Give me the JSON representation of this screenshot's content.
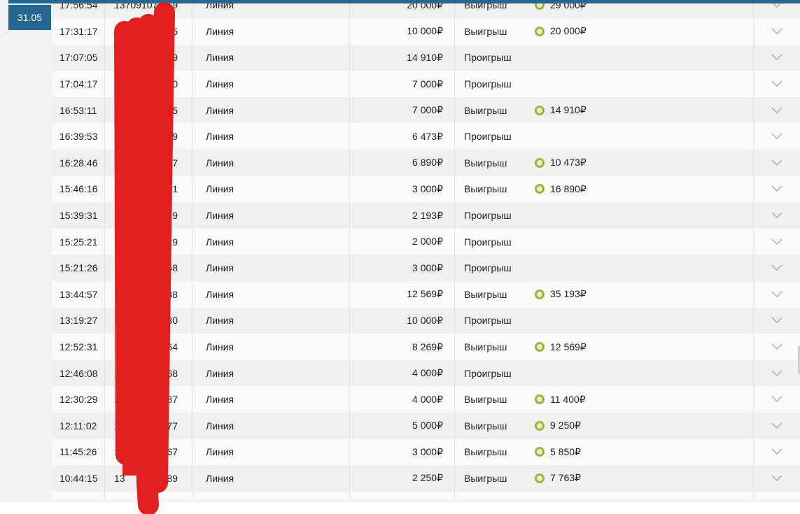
{
  "date_badge": "31.05",
  "currency": "₽",
  "rows": [
    {
      "time": "17:56:54",
      "id_start": "13709107",
      "id_end": "9",
      "type": "Линия",
      "amount": "20 000₽",
      "result": "Выигрыш",
      "payout": "29 000₽"
    },
    {
      "time": "17:31:17",
      "id_start": "",
      "id_end": "5",
      "type": "Линия",
      "amount": "10 000₽",
      "result": "Выигрыш",
      "payout": "20 000₽"
    },
    {
      "time": "17:07:05",
      "id_start": "1",
      "id_end": "9",
      "type": "Линия",
      "amount": "14 910₽",
      "result": "Проигрыш",
      "payout": ""
    },
    {
      "time": "17:04:17",
      "id_start": "1",
      "id_end": "0",
      "type": "Линия",
      "amount": "7 000₽",
      "result": "Проигрыш",
      "payout": ""
    },
    {
      "time": "16:53:11",
      "id_start": "1",
      "id_end": "5",
      "type": "Линия",
      "amount": "7 000₽",
      "result": "Выигрыш",
      "payout": "14 910₽"
    },
    {
      "time": "16:39:53",
      "id_start": "1",
      "id_end": "9",
      "type": "Линия",
      "amount": "6 473₽",
      "result": "Проигрыш",
      "payout": ""
    },
    {
      "time": "16:28:46",
      "id_start": "1",
      "id_end": "7",
      "type": "Линия",
      "amount": "6 890₽",
      "result": "Выигрыш",
      "payout": "10 473₽"
    },
    {
      "time": "15:46:16",
      "id_start": "1",
      "id_end": "1",
      "type": "Линия",
      "amount": "3 000₽",
      "result": "Выигрыш",
      "payout": "16 890₽"
    },
    {
      "time": "15:39:31",
      "id_start": "1",
      "id_end": "9",
      "type": "Линия",
      "amount": "2 193₽",
      "result": "Проигрыш",
      "payout": ""
    },
    {
      "time": "15:25:21",
      "id_start": "1",
      "id_end": "9",
      "type": "Линия",
      "amount": "2 000₽",
      "result": "Проигрыш",
      "payout": ""
    },
    {
      "time": "15:21:26",
      "id_start": "1",
      "id_end": "58",
      "type": "Линия",
      "amount": "3 000₽",
      "result": "Проигрыш",
      "payout": ""
    },
    {
      "time": "13:44:57",
      "id_start": "1",
      "id_end": "38",
      "type": "Линия",
      "amount": "12 569₽",
      "result": "Выигрыш",
      "payout": "35 193₽"
    },
    {
      "time": "13:19:27",
      "id_start": "1",
      "id_end": "30",
      "type": "Линия",
      "amount": "10 000₽",
      "result": "Проигрыш",
      "payout": ""
    },
    {
      "time": "12:52:31",
      "id_start": "1",
      "id_end": "64",
      "type": "Линия",
      "amount": "8 269₽",
      "result": "Выигрыш",
      "payout": "12 569₽"
    },
    {
      "time": "12:46:08",
      "id_start": "1",
      "id_end": "68",
      "type": "Линия",
      "amount": "4 000₽",
      "result": "Проигрыш",
      "payout": ""
    },
    {
      "time": "12:30:29",
      "id_start": "1",
      "id_end": "87",
      "type": "Линия",
      "amount": "4 000₽",
      "result": "Выигрыш",
      "payout": "11 400₽"
    },
    {
      "time": "12:11:02",
      "id_start": "1",
      "id_end": "77",
      "type": "Линия",
      "amount": "5 000₽",
      "result": "Выигрыш",
      "payout": "9 250₽"
    },
    {
      "time": "11:45:26",
      "id_start": "1",
      "id_end": "67",
      "type": "Линия",
      "amount": "3 000₽",
      "result": "Выигрыш",
      "payout": "5 850₽"
    },
    {
      "time": "10:44:15",
      "id_start": "13",
      "id_end": "89",
      "type": "Линия",
      "amount": "2 250₽",
      "result": "Выигрыш",
      "payout": "7 763₽"
    },
    {
      "time": "",
      "id_start": "",
      "id_end": "",
      "type": "",
      "amount": "",
      "result": "",
      "payout": ""
    }
  ],
  "colors": {
    "accent": "#26678f",
    "win_icon": "#9db43c",
    "redaction": "#e31e1e"
  }
}
